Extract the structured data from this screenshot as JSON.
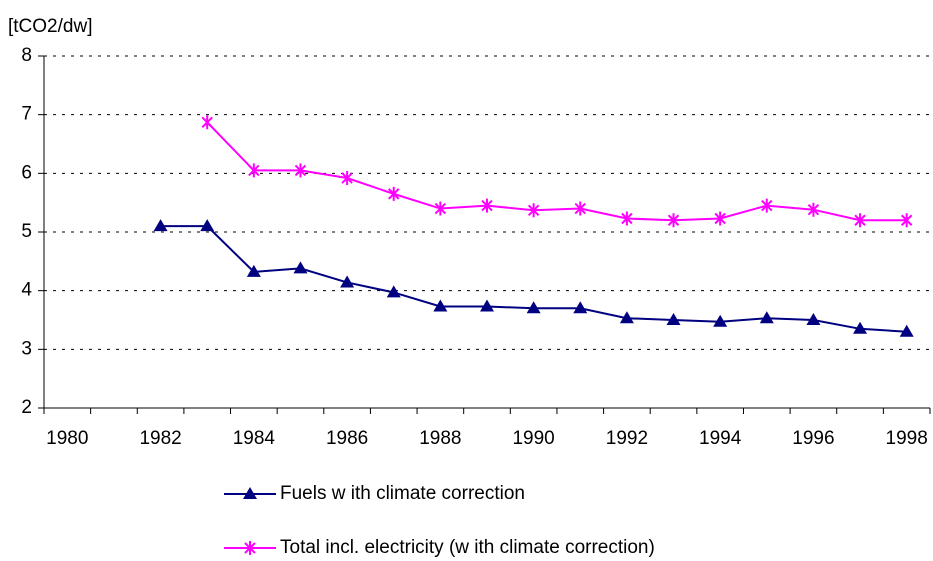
{
  "chart_data": {
    "type": "line",
    "y_label": "[tCO2/dw]",
    "categories": [
      "1980",
      null,
      "1982",
      null,
      "1984",
      null,
      "1986",
      null,
      "1988",
      null,
      "1990",
      null,
      "1992",
      null,
      "1994",
      null,
      "1996",
      null,
      "1998"
    ],
    "series": [
      {
        "name": "Fuels w ith climate correction",
        "color": "#000080",
        "marker": "triangle",
        "values": [
          null,
          null,
          5.1,
          5.1,
          4.32,
          4.38,
          4.14,
          3.97,
          3.73,
          3.73,
          3.7,
          3.7,
          3.53,
          3.5,
          3.47,
          3.53,
          3.5,
          3.35,
          3.3
        ]
      },
      {
        "name": "Total incl. electricity (w ith climate correction)",
        "color": "#ff00ff",
        "marker": "asterisk",
        "values": [
          null,
          null,
          null,
          6.87,
          6.05,
          6.05,
          5.92,
          5.65,
          5.4,
          5.45,
          5.37,
          5.4,
          5.23,
          5.2,
          5.23,
          5.45,
          5.38,
          5.2,
          5.2
        ]
      }
    ],
    "ylim": [
      2,
      8
    ],
    "yticks": [
      2,
      3,
      4,
      5,
      6,
      7,
      8
    ],
    "grid": true,
    "legend": "bottom"
  }
}
